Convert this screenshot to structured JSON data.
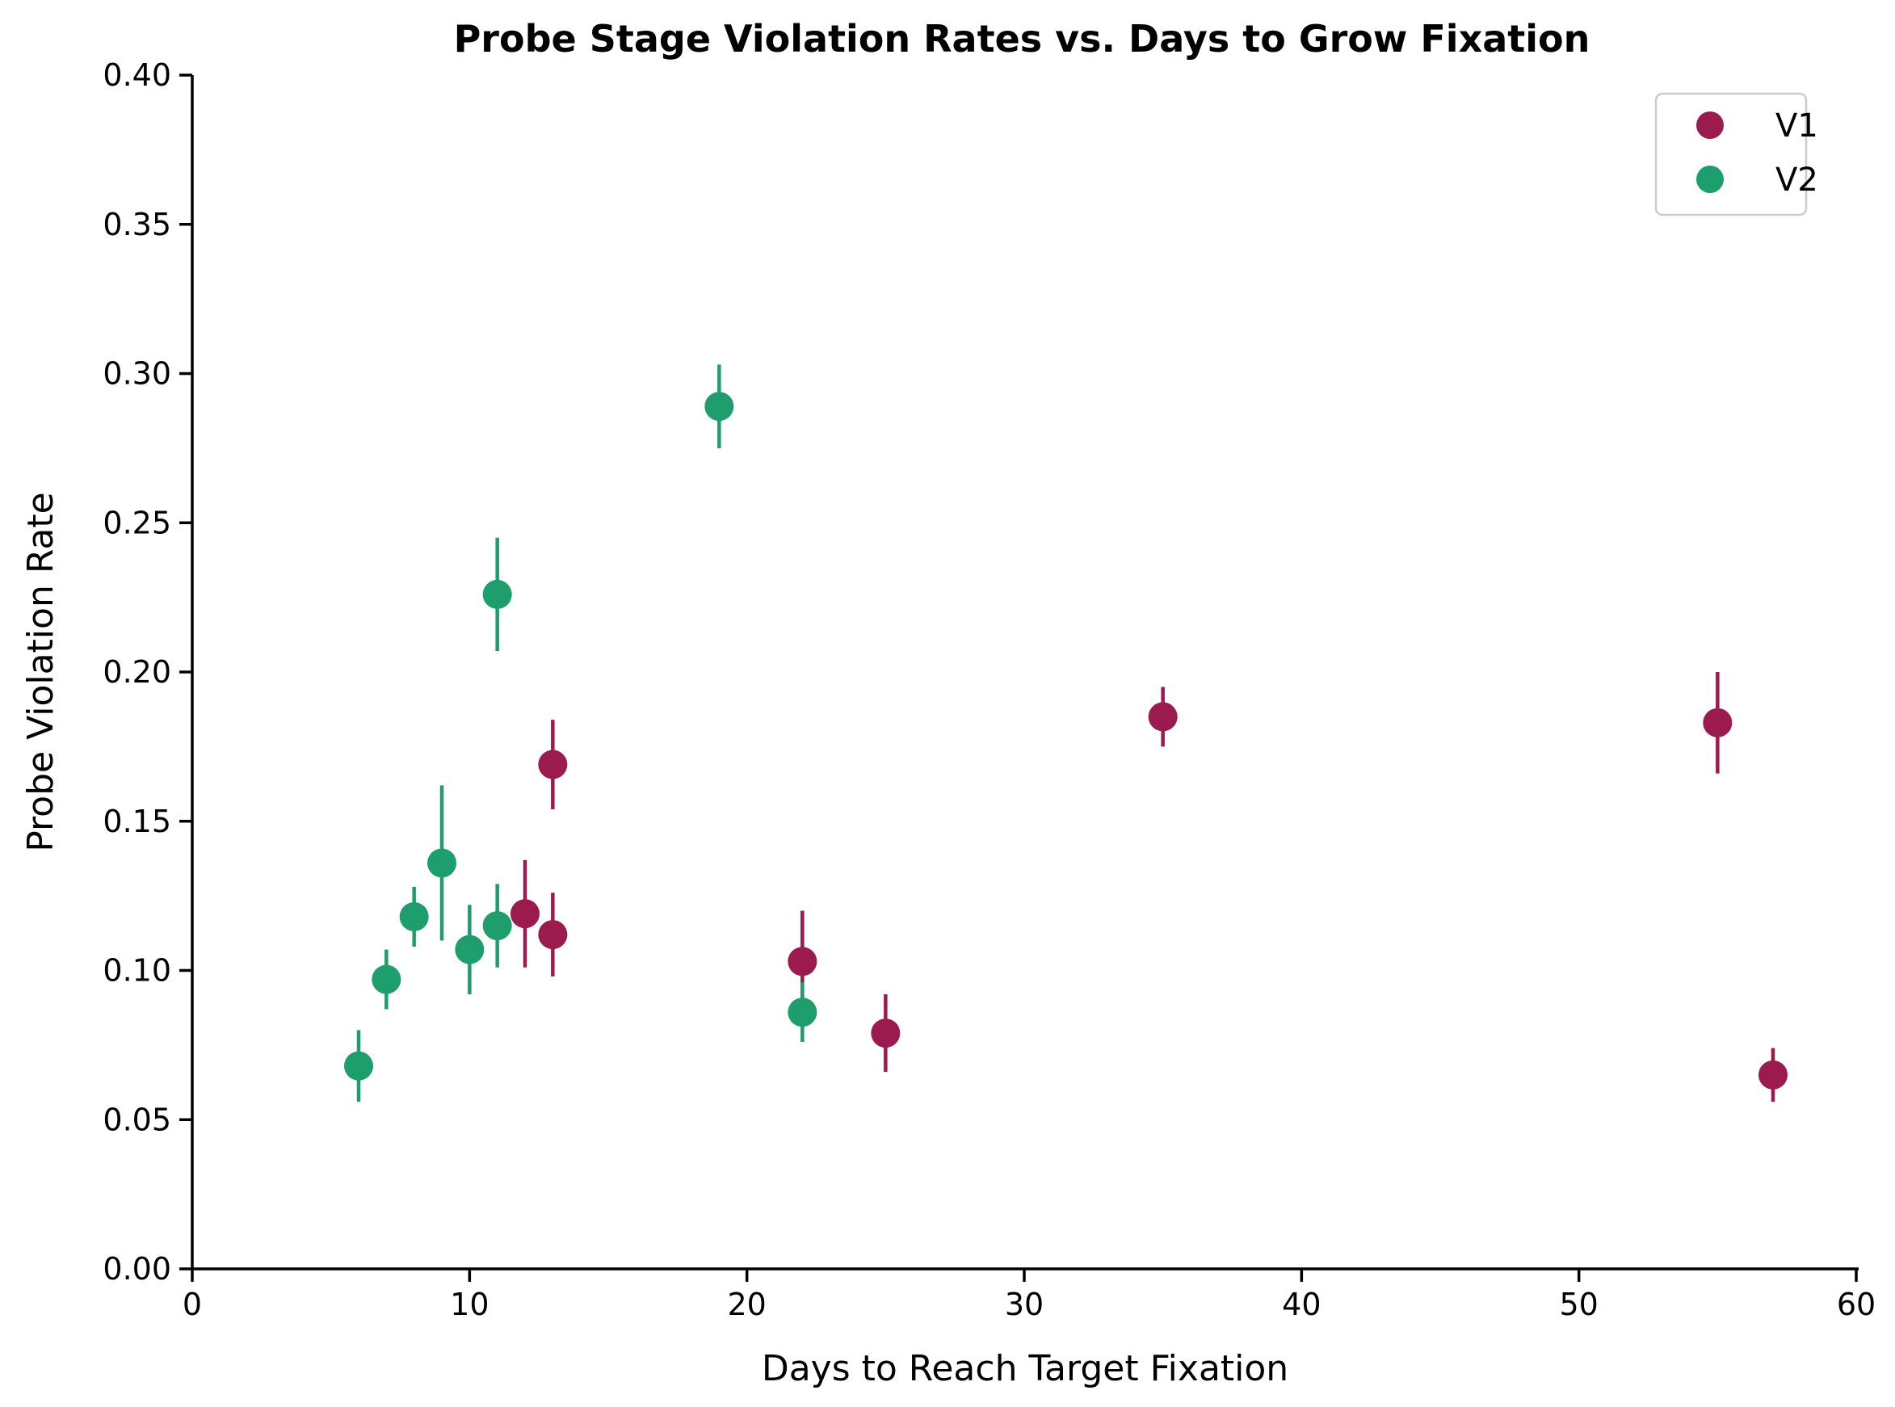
{
  "chart_data": {
    "type": "scatter",
    "title": "Probe Stage Violation Rates vs. Days to Grow Fixation",
    "xlabel": "Days to Reach Target Fixation",
    "ylabel": "Probe Violation Rate",
    "xlim": [
      0,
      60
    ],
    "ylim": [
      0,
      0.4
    ],
    "xticks": [
      "0",
      "10",
      "20",
      "30",
      "40",
      "50",
      "60"
    ],
    "yticks": [
      "0.00",
      "0.05",
      "0.10",
      "0.15",
      "0.20",
      "0.25",
      "0.30",
      "0.35",
      "0.40"
    ],
    "grid": false,
    "legend_position": "top-right",
    "series": [
      {
        "name": "V1",
        "color": "#9b1b4f",
        "points": [
          {
            "x": 12,
            "y": 0.119,
            "err": 0.018
          },
          {
            "x": 13,
            "y": 0.169,
            "err": 0.015
          },
          {
            "x": 13,
            "y": 0.112,
            "err": 0.014
          },
          {
            "x": 22,
            "y": 0.103,
            "err": 0.017
          },
          {
            "x": 25,
            "y": 0.079,
            "err": 0.013
          },
          {
            "x": 35,
            "y": 0.185,
            "err": 0.01
          },
          {
            "x": 55,
            "y": 0.183,
            "err": 0.017
          },
          {
            "x": 57,
            "y": 0.065,
            "err": 0.009
          }
        ]
      },
      {
        "name": "V2",
        "color": "#1f9e6d",
        "points": [
          {
            "x": 6,
            "y": 0.068,
            "err": 0.012
          },
          {
            "x": 7,
            "y": 0.097,
            "err": 0.01
          },
          {
            "x": 8,
            "y": 0.118,
            "err": 0.01
          },
          {
            "x": 9,
            "y": 0.136,
            "err": 0.026
          },
          {
            "x": 10,
            "y": 0.107,
            "err": 0.015
          },
          {
            "x": 11,
            "y": 0.115,
            "err": 0.014
          },
          {
            "x": 11,
            "y": 0.226,
            "err": 0.019
          },
          {
            "x": 19,
            "y": 0.289,
            "err": 0.014
          },
          {
            "x": 22,
            "y": 0.086,
            "err": 0.01
          }
        ]
      }
    ]
  }
}
